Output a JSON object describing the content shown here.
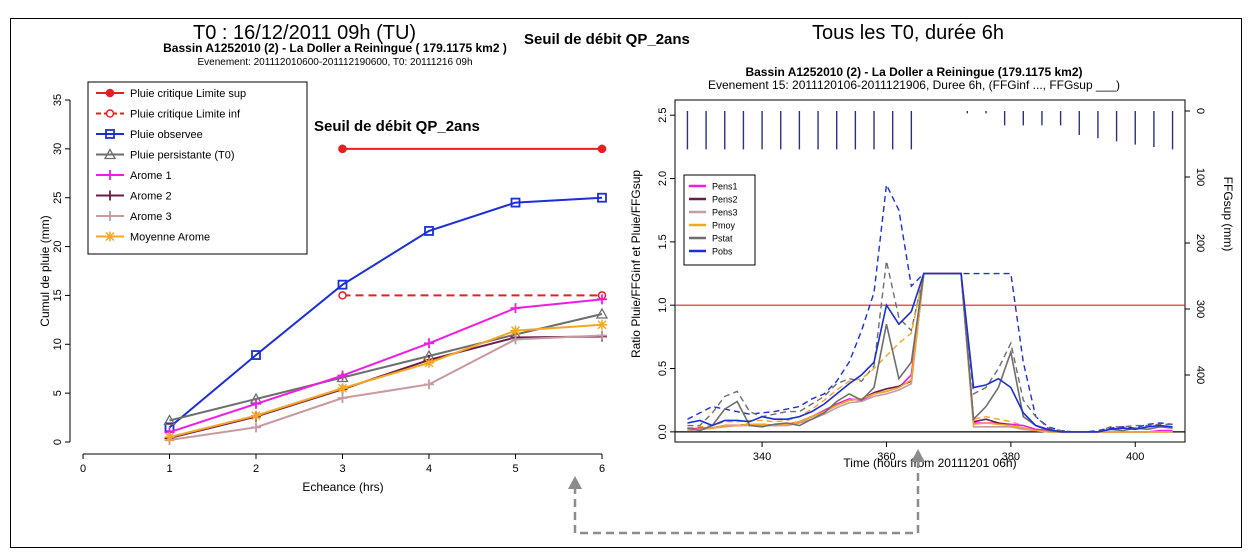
{
  "header": {
    "left": "T0 : 16/12/2011 09h (TU)",
    "middle": "Seuil de débit QP_2ans",
    "right": "Tous les T0, durée 6h"
  },
  "colors": {
    "red": "#e62020",
    "blue": "#1c2fd6",
    "gray": "#6e6e6e",
    "magenta": "#f01ce6",
    "darkpurple": "#6b1d4a",
    "pink": "#c89aa0",
    "orange": "#f5a623",
    "hyeto": "#2b2f8a",
    "arrow": "#8c8c8c"
  },
  "chart_data": [
    {
      "type": "line",
      "title": "Bassin A1252010 (2) - La Doller a Reiningue ( 179.1175 km2 )",
      "subtitle": "Evenement: 201112010600-201112190600, T0: 20111216 09h",
      "annotation": "Seuil de débit QP_2ans",
      "xlabel": "Echeance (hrs)",
      "ylabel": "Cumul de pluie (mm)",
      "xlim": [
        0,
        6
      ],
      "ylim": [
        0,
        35
      ],
      "xticks": [
        "0",
        "1",
        "2",
        "3",
        "4",
        "5",
        "6"
      ],
      "yticks": [
        "0",
        "5",
        "10",
        "15",
        "20",
        "25",
        "30",
        "35"
      ],
      "legend_position": "top-left",
      "series": [
        {
          "name": "Pluie critique Limite sup",
          "x": [
            3,
            6
          ],
          "y": [
            30,
            30
          ],
          "color": "#e62020",
          "dash": "solid",
          "marker": "circle-filled"
        },
        {
          "name": "Pluie critique Limite inf",
          "x": [
            3,
            6
          ],
          "y": [
            15,
            15
          ],
          "color": "#e62020",
          "dash": "dashed",
          "marker": "circle-open"
        },
        {
          "name": "Pluie observee",
          "x": [
            1,
            2,
            3,
            4,
            5,
            6
          ],
          "y": [
            1.5,
            8.9,
            16.1,
            21.6,
            24.5,
            25.0
          ],
          "color": "#1c2fd6",
          "dash": "solid",
          "marker": "square"
        },
        {
          "name": "Pluie persistante (T0)",
          "x": [
            1,
            2,
            3,
            4,
            5,
            6
          ],
          "y": [
            2.2,
            4.4,
            6.6,
            8.8,
            11.0,
            13.1
          ],
          "color": "#6e6e6e",
          "dash": "solid",
          "marker": "triangle"
        },
        {
          "name": "Arome 1",
          "x": [
            1,
            2,
            3,
            4,
            5,
            6
          ],
          "y": [
            1.0,
            3.9,
            6.8,
            10.1,
            13.7,
            14.6
          ],
          "color": "#f01ce6",
          "dash": "solid",
          "marker": "plus"
        },
        {
          "name": "Arome 2",
          "x": [
            1,
            2,
            3,
            4,
            5,
            6
          ],
          "y": [
            0.4,
            2.6,
            5.4,
            8.4,
            10.7,
            10.8
          ],
          "color": "#6b1d4a",
          "dash": "solid",
          "marker": "plus"
        },
        {
          "name": "Arome 3",
          "x": [
            1,
            2,
            3,
            4,
            5,
            6
          ],
          "y": [
            0.2,
            1.5,
            4.5,
            5.9,
            10.5,
            10.9
          ],
          "color": "#c89aa0",
          "dash": "solid",
          "marker": "plus"
        },
        {
          "name": "Moyenne Arome",
          "x": [
            1,
            2,
            3,
            4,
            5,
            6
          ],
          "y": [
            0.5,
            2.7,
            5.5,
            8.1,
            11.4,
            12.0
          ],
          "color": "#f5a623",
          "dash": "solid",
          "marker": "star"
        }
      ]
    },
    {
      "type": "line",
      "title": "Bassin A1252010 (2) - La Doller a Reiningue (179.1175 km2)",
      "subtitle": "Evenement 15: 2011120106-2011121906, Duree 6h, (FFGinf ..., FFGsup ___)",
      "xlabel": "Time (hours from 20111201 06h)",
      "ylabel": "Ratio Pluie/FFGinf et Pluie/FFGsup",
      "ylabel_right": "FFGsup (mm)",
      "xlim": [
        326,
        408
      ],
      "ylim": [
        -0.08,
        2.62
      ],
      "xticks": [
        "340",
        "360",
        "380",
        "400"
      ],
      "yticks": [
        "0.0",
        "0.5",
        "1.0",
        "1.5",
        "2.0",
        "2.5"
      ],
      "yticks_right": [
        "0",
        "100",
        "200",
        "300",
        "400"
      ],
      "threshold": 1.0,
      "legend_position": "top-left",
      "legend": [
        "Pens1",
        "Pens2",
        "Pens3",
        "Pmoy",
        "Pstat",
        "Pobs"
      ],
      "x": [
        328,
        330,
        332,
        334,
        336,
        338,
        340,
        342,
        344,
        346,
        348,
        350,
        352,
        354,
        356,
        358,
        360,
        362,
        364,
        366,
        368,
        370,
        372,
        374,
        376,
        378,
        380,
        382,
        384,
        386,
        388,
        390,
        392,
        394,
        396,
        398,
        400,
        402,
        404,
        406
      ],
      "series": [
        {
          "name": "Pens1",
          "color": "#f01ce6",
          "y": [
            0.02,
            0.03,
            0.03,
            0.05,
            0.05,
            0.06,
            0.06,
            0.05,
            0.06,
            0.08,
            0.12,
            0.17,
            0.22,
            0.26,
            0.25,
            0.3,
            0.32,
            0.35,
            0.45,
            1.25,
            1.25,
            1.25,
            1.25,
            0.07,
            0.07,
            0.07,
            0.06,
            0.05,
            0.02,
            0.01,
            0.0,
            0.0,
            0.0,
            0.0,
            0.0,
            0.0,
            0.0,
            0.0,
            0.01,
            0.01
          ]
        },
        {
          "name": "Pens2",
          "color": "#6b1d4a",
          "y": [
            0.02,
            0.02,
            0.03,
            0.05,
            0.05,
            0.06,
            0.06,
            0.05,
            0.06,
            0.08,
            0.12,
            0.16,
            0.21,
            0.25,
            0.26,
            0.31,
            0.34,
            0.36,
            0.4,
            1.25,
            1.25,
            1.25,
            1.25,
            0.08,
            0.1,
            0.07,
            0.05,
            0.03,
            0.01,
            0.0,
            0.0,
            0.0,
            0.0,
            0.0,
            0.0,
            0.0,
            0.0,
            0.0,
            0.0,
            0.0
          ]
        },
        {
          "name": "Pens3",
          "color": "#c89aa0",
          "y": [
            0.01,
            0.02,
            0.03,
            0.04,
            0.05,
            0.05,
            0.05,
            0.05,
            0.05,
            0.07,
            0.1,
            0.14,
            0.19,
            0.23,
            0.24,
            0.28,
            0.3,
            0.33,
            0.38,
            1.25,
            1.25,
            1.25,
            1.25,
            0.04,
            0.04,
            0.04,
            0.04,
            0.02,
            0.01,
            0.0,
            0.0,
            0.0,
            0.0,
            0.0,
            0.0,
            0.0,
            0.0,
            0.0,
            0.0,
            0.0
          ]
        },
        {
          "name": "Pmoy",
          "color": "#f5a623",
          "y": [
            0.02,
            0.02,
            0.03,
            0.05,
            0.05,
            0.06,
            0.06,
            0.05,
            0.06,
            0.08,
            0.12,
            0.16,
            0.21,
            0.25,
            0.26,
            0.3,
            0.32,
            0.35,
            0.41,
            1.25,
            1.25,
            1.25,
            1.25,
            0.06,
            0.07,
            0.06,
            0.05,
            0.03,
            0.01,
            0.0,
            0.0,
            0.0,
            0.0,
            0.0,
            0.0,
            0.0,
            0.0,
            0.0,
            0.0,
            0.0
          ]
        },
        {
          "name": "Pstat",
          "color": "#6e6e6e",
          "y": [
            0.03,
            0.01,
            0.05,
            0.18,
            0.24,
            0.05,
            0.04,
            0.06,
            0.07,
            0.05,
            0.1,
            0.15,
            0.24,
            0.3,
            0.25,
            0.35,
            0.85,
            0.42,
            0.55,
            1.25,
            1.25,
            1.25,
            1.25,
            0.1,
            0.2,
            0.35,
            0.63,
            0.12,
            0.05,
            0.01,
            0.0,
            0.0,
            0.0,
            0.0,
            0.02,
            0.01,
            0.03,
            0.02,
            0.04,
            0.03
          ]
        },
        {
          "name": "Pobs",
          "color": "#1c2fd6",
          "y": [
            0.07,
            0.09,
            0.05,
            0.09,
            0.09,
            0.08,
            0.12,
            0.1,
            0.1,
            0.12,
            0.16,
            0.22,
            0.3,
            0.38,
            0.45,
            0.55,
            1.0,
            0.85,
            0.95,
            1.25,
            1.25,
            1.25,
            1.25,
            0.35,
            0.37,
            0.42,
            0.35,
            0.15,
            0.05,
            0.02,
            0.0,
            0.0,
            0.0,
            0.0,
            0.02,
            0.03,
            0.02,
            0.04,
            0.05,
            0.04
          ]
        },
        {
          "name": "Pobs",
          "color": "#1c2fd6",
          "dash": "dashed",
          "y": [
            0.1,
            0.15,
            0.2,
            0.18,
            0.16,
            0.14,
            0.15,
            0.16,
            0.18,
            0.2,
            0.26,
            0.3,
            0.4,
            0.55,
            0.8,
            1.1,
            1.95,
            1.75,
            1.15,
            1.25,
            1.25,
            1.25,
            1.25,
            1.25,
            1.25,
            1.25,
            1.25,
            0.55,
            0.12,
            0.04,
            0.01,
            0.0,
            0.0,
            0.01,
            0.03,
            0.04,
            0.03,
            0.06,
            0.07,
            0.06
          ]
        },
        {
          "name": "Pstat",
          "color": "#6e6e6e",
          "dash": "dashed",
          "y": [
            0.05,
            0.05,
            0.15,
            0.28,
            0.32,
            0.16,
            0.12,
            0.14,
            0.16,
            0.16,
            0.22,
            0.28,
            0.38,
            0.42,
            0.4,
            0.52,
            1.35,
            0.9,
            0.8,
            1.25,
            1.25,
            1.25,
            1.25,
            0.3,
            0.35,
            0.5,
            0.7,
            0.25,
            0.12,
            0.03,
            0.01,
            0.0,
            0.0,
            0.0,
            0.04,
            0.04,
            0.05,
            0.05,
            0.06,
            0.06
          ]
        },
        {
          "name": "Pmoy",
          "color": "#f5a623",
          "dash": "dashed",
          "y": [
            0.03,
            0.04,
            0.05,
            0.08,
            0.08,
            0.09,
            0.09,
            0.08,
            0.09,
            0.12,
            0.18,
            0.25,
            0.33,
            0.4,
            0.42,
            0.5,
            0.6,
            0.7,
            0.78,
            1.25,
            1.25,
            1.25,
            1.25,
            0.1,
            0.12,
            0.1,
            0.08,
            0.05,
            0.02,
            0.0,
            0.0,
            0.0,
            0.0,
            0.0,
            0.0,
            0.0,
            0.0,
            0.0,
            0.0,
            0.0
          ]
        }
      ],
      "hyetogram": {
        "x": [
          328,
          331,
          334,
          337,
          340,
          343,
          346,
          349,
          352,
          355,
          358,
          361,
          364,
          367,
          370,
          373,
          376,
          379,
          382,
          385,
          388,
          391,
          394,
          397,
          400,
          403,
          406
        ],
        "lengths_mm": [
          48,
          48,
          48,
          48,
          48,
          48,
          48,
          48,
          48,
          48,
          48,
          48,
          48,
          0,
          0,
          3,
          3,
          18,
          18,
          18,
          18,
          30,
          34,
          38,
          42,
          45,
          48
        ]
      }
    }
  ]
}
